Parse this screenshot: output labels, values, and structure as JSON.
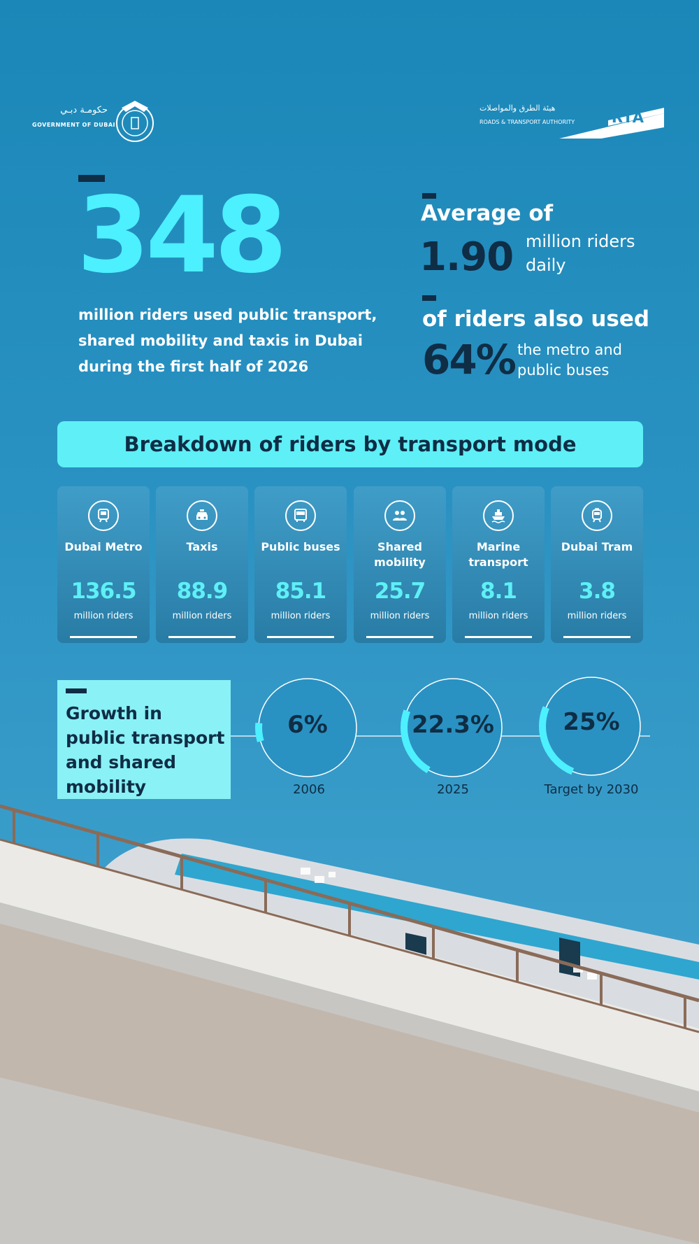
{
  "logos": {
    "government": {
      "arabic": "حكومـة دبـي",
      "english": "GOVERNMENT OF DUBAI"
    },
    "rta": {
      "arabic": "هيئة الطرق والمواصلات",
      "english": "ROADS & TRANSPORT AUTHORITY",
      "mark": "RTA"
    }
  },
  "headline": {
    "total": "348",
    "description": "million riders used public transport, shared mobility and taxis in Dubai during the first half of 2026"
  },
  "average": {
    "label": "Average of",
    "value": "1.90",
    "unit": "million riders daily"
  },
  "combined": {
    "label": "of riders also used",
    "value": "64%",
    "description": "the metro and public buses"
  },
  "breakdown": {
    "title": "Breakdown of riders by transport mode",
    "modes": [
      {
        "name": "Dubai Metro",
        "value": "136.5",
        "unit": "million riders",
        "icon": "metro-icon"
      },
      {
        "name": "Taxis",
        "value": "88.9",
        "unit": "million riders",
        "icon": "taxi-icon"
      },
      {
        "name": "Public buses",
        "value": "85.1",
        "unit": "million riders",
        "icon": "bus-icon"
      },
      {
        "name": "Shared mobility",
        "value": "25.7",
        "unit": "million riders",
        "icon": "people-icon"
      },
      {
        "name": "Marine transport",
        "value": "8.1",
        "unit": "million riders",
        "icon": "ship-icon"
      },
      {
        "name": "Dubai Tram",
        "value": "3.8",
        "unit": "million riders",
        "icon": "tram-icon"
      }
    ]
  },
  "growth": {
    "title": "Growth in public transport and shared mobility",
    "milestones": [
      {
        "value": "6%",
        "year": "2006",
        "fraction": 0.06
      },
      {
        "value": "22.3%",
        "year": "2025",
        "fraction": 0.223
      },
      {
        "value": "25%",
        "year": "Target by 2030",
        "fraction": 0.25
      }
    ]
  },
  "colors": {
    "accent_cyan": "#4df0ff",
    "navy": "#0f2d45",
    "sky": "#2a92c2"
  }
}
